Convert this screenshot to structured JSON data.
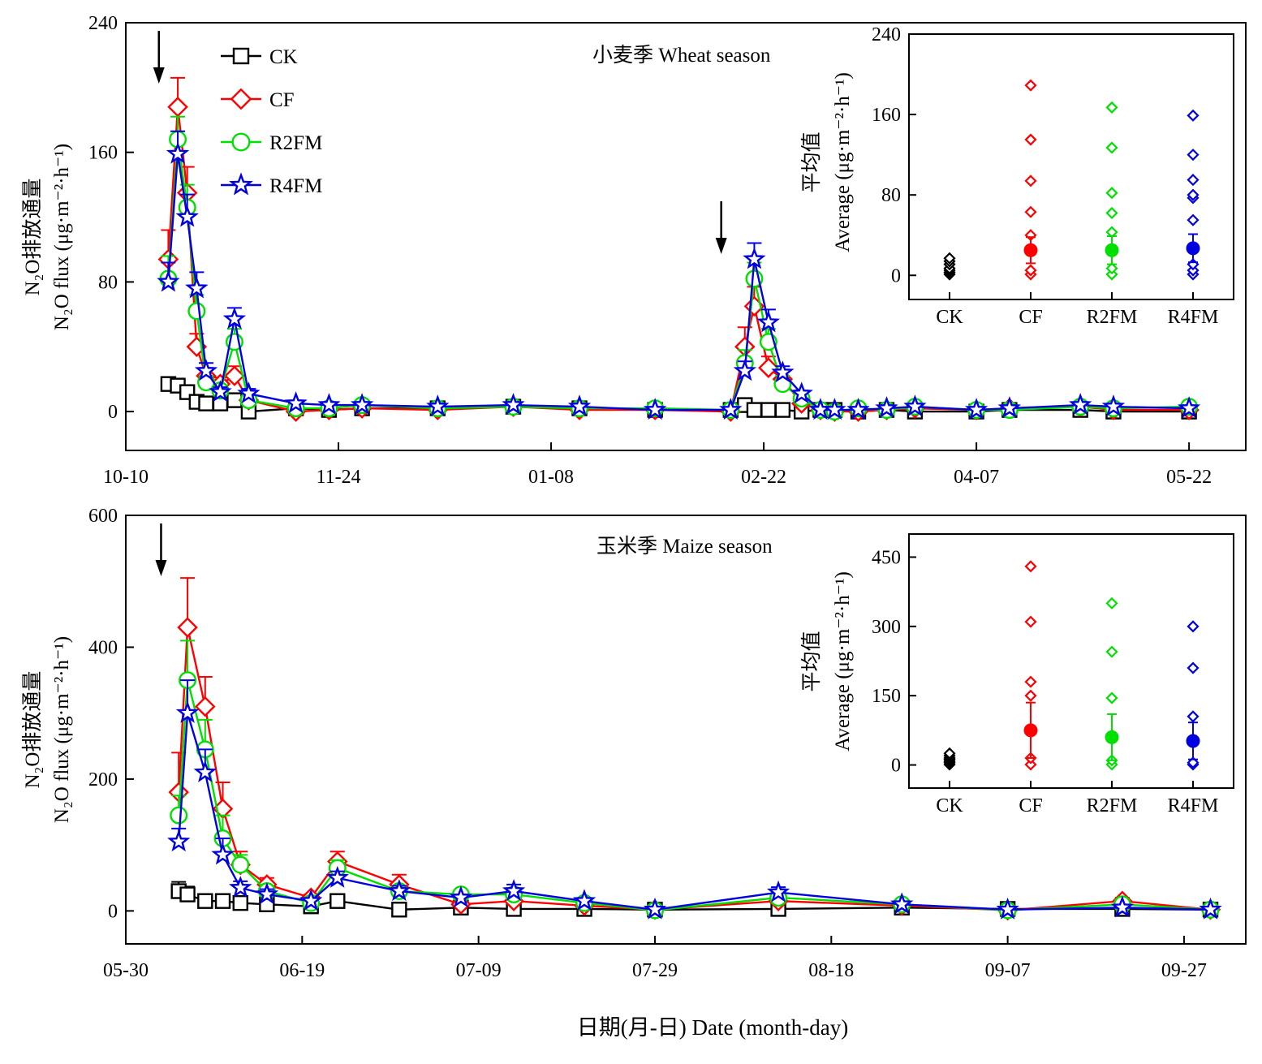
{
  "figure": {
    "xlabel": "日期(月-日)  Date (month-day)",
    "ylabel_line1": "N₂O排放通量",
    "ylabel_line2": "N₂O flux (μg·m⁻²·h⁻¹)",
    "inset_ylabel_line1": "平均值",
    "inset_ylabel_line2": "Average (μg·m⁻²·h⁻¹)"
  },
  "colors": {
    "CK": "#000000",
    "CF": "#ff0000",
    "R2FM": "#00e000",
    "R4FM": "#0000e0"
  },
  "legend": [
    {
      "name": "CK",
      "marker": "square"
    },
    {
      "name": "CF",
      "marker": "diamond"
    },
    {
      "name": "R2FM",
      "marker": "circle"
    },
    {
      "name": "R4FM",
      "marker": "star"
    }
  ],
  "chart_data": [
    {
      "type": "line",
      "panel": "top",
      "title": "小麦季 Wheat season",
      "x_tick_labels": [
        "10-10",
        "11-24",
        "01-08",
        "02-22",
        "04-07",
        "05-22"
      ],
      "x_tick_days": [
        0,
        45,
        90,
        135,
        180,
        225
      ],
      "xlim_days": [
        0,
        237
      ],
      "ylim": [
        -24,
        240
      ],
      "y_ticks": [
        0,
        80,
        160,
        240
      ],
      "fertilization_arrows_days": [
        7,
        126
      ],
      "x_days": [
        9,
        11,
        13,
        15,
        17,
        20,
        23,
        26,
        36,
        43,
        50,
        66,
        82,
        96,
        112,
        128,
        131,
        133,
        136,
        139,
        143,
        147,
        150,
        155,
        161,
        167,
        180,
        187,
        202,
        209,
        225
      ],
      "series": [
        {
          "name": "CK",
          "values": [
            17,
            16,
            12,
            6,
            5,
            5,
            7,
            0,
            2,
            1,
            2,
            2,
            3,
            2,
            1,
            1,
            4,
            1,
            1,
            1,
            0,
            1,
            1,
            0,
            1,
            0,
            0,
            1,
            1,
            0,
            0
          ],
          "errors": [
            4,
            4,
            3,
            2,
            2,
            2,
            2,
            0,
            0,
            0,
            0,
            0,
            0,
            0,
            0,
            0,
            2,
            0,
            0,
            0,
            0,
            0,
            0,
            0,
            0,
            0,
            0,
            0,
            0,
            0,
            0
          ]
        },
        {
          "name": "CF",
          "values": [
            94,
            188,
            135,
            40,
            22,
            17,
            22,
            7,
            0,
            1,
            2,
            1,
            3,
            1,
            1,
            0,
            40,
            65,
            27,
            20,
            5,
            1,
            0,
            0,
            1,
            2,
            1,
            2,
            3,
            1,
            1
          ],
          "errors": [
            18,
            18,
            16,
            8,
            5,
            4,
            6,
            2,
            0,
            0,
            0,
            0,
            0,
            0,
            0,
            0,
            12,
            12,
            7,
            5,
            2,
            0,
            0,
            0,
            0,
            0,
            0,
            0,
            0,
            0,
            0
          ]
        },
        {
          "name": "R2FM",
          "values": [
            82,
            168,
            126,
            62,
            18,
            13,
            43,
            7,
            2,
            2,
            4,
            2,
            3,
            2,
            2,
            1,
            30,
            82,
            43,
            17,
            8,
            1,
            0,
            2,
            1,
            3,
            1,
            1,
            3,
            2,
            3
          ],
          "errors": [
            14,
            14,
            14,
            10,
            4,
            3,
            8,
            2,
            0,
            0,
            0,
            0,
            0,
            0,
            0,
            0,
            8,
            10,
            8,
            5,
            2,
            0,
            0,
            0,
            0,
            0,
            0,
            0,
            0,
            0,
            0
          ]
        },
        {
          "name": "R4FM",
          "values": [
            80,
            159,
            120,
            76,
            25,
            12,
            57,
            11,
            5,
            4,
            4,
            3,
            4,
            3,
            1,
            1,
            25,
            94,
            55,
            24,
            11,
            1,
            1,
            1,
            2,
            3,
            1,
            2,
            4,
            3,
            2
          ],
          "errors": [
            12,
            14,
            14,
            10,
            5,
            3,
            7,
            3,
            0,
            0,
            0,
            0,
            0,
            0,
            0,
            0,
            6,
            10,
            8,
            4,
            2,
            0,
            0,
            0,
            0,
            0,
            0,
            0,
            0,
            0,
            0
          ]
        }
      ],
      "legend_position": "top-left",
      "inset": {
        "type": "scatter",
        "categories": [
          "CK",
          "CF",
          "R2FM",
          "R4FM"
        ],
        "ylim": [
          -24,
          240
        ],
        "y_ticks": [
          0,
          80,
          160,
          240
        ],
        "points": [
          [
            1,
            3,
            5,
            7,
            11,
            14,
            17
          ],
          [
            1,
            5,
            40,
            63,
            94,
            135,
            189
          ],
          [
            1,
            7,
            43,
            62,
            82,
            127,
            167
          ],
          [
            1,
            5,
            11,
            55,
            77,
            80,
            95,
            120,
            159
          ]
        ],
        "means": [
          3,
          25,
          25,
          27
        ],
        "mean_errors": [
          0,
          13,
          14,
          14
        ]
      }
    },
    {
      "type": "line",
      "panel": "bottom",
      "title": "玉米季 Maize season",
      "x_tick_labels": [
        "05-30",
        "06-19",
        "07-09",
        "07-29",
        "08-18",
        "09-07",
        "09-27"
      ],
      "x_tick_days": [
        0,
        20,
        40,
        60,
        80,
        100,
        120
      ],
      "xlim_days": [
        0,
        127
      ],
      "ylim": [
        -50,
        600
      ],
      "y_ticks": [
        0,
        200,
        400,
        600
      ],
      "fertilization_arrows_days": [
        4
      ],
      "x_days": [
        6,
        7,
        9,
        11,
        13,
        16,
        21,
        24,
        31,
        38,
        44,
        52,
        60,
        74,
        88,
        100,
        113,
        123
      ],
      "series": [
        {
          "name": "CK",
          "values": [
            30,
            25,
            15,
            15,
            12,
            10,
            7,
            15,
            2,
            5,
            3,
            3,
            2,
            3,
            5,
            3,
            3,
            2
          ],
          "errors": [
            14,
            12,
            5,
            4,
            4,
            4,
            2,
            5,
            0,
            0,
            0,
            0,
            0,
            0,
            0,
            0,
            0,
            0
          ]
        },
        {
          "name": "CF",
          "values": [
            180,
            430,
            310,
            155,
            70,
            40,
            20,
            75,
            40,
            10,
            15,
            8,
            2,
            15,
            8,
            1,
            15,
            2
          ],
          "errors": [
            60,
            75,
            45,
            40,
            20,
            10,
            5,
            15,
            15,
            3,
            5,
            3,
            0,
            5,
            3,
            0,
            5,
            0
          ]
        },
        {
          "name": "R2FM",
          "values": [
            145,
            350,
            245,
            110,
            70,
            30,
            12,
            65,
            30,
            25,
            25,
            12,
            1,
            20,
            10,
            1,
            10,
            2
          ],
          "errors": [
            30,
            60,
            45,
            35,
            15,
            8,
            4,
            12,
            8,
            5,
            8,
            4,
            0,
            5,
            3,
            0,
            4,
            0
          ]
        },
        {
          "name": "R4FM",
          "values": [
            105,
            300,
            210,
            85,
            35,
            25,
            15,
            50,
            30,
            20,
            30,
            15,
            2,
            28,
            10,
            2,
            5,
            2
          ],
          "errors": [
            20,
            50,
            35,
            25,
            10,
            8,
            4,
            10,
            8,
            5,
            10,
            4,
            0,
            8,
            3,
            0,
            3,
            0
          ]
        }
      ],
      "inset": {
        "type": "scatter",
        "categories": [
          "CK",
          "CF",
          "R2FM",
          "R4FM"
        ],
        "ylim": [
          -50,
          500
        ],
        "y_ticks": [
          0,
          150,
          300,
          450
        ],
        "points": [
          [
            1,
            5,
            8,
            12,
            15,
            20,
            25
          ],
          [
            1,
            15,
            150,
            180,
            310,
            430
          ],
          [
            1,
            10,
            145,
            245,
            350
          ],
          [
            1,
            5,
            105,
            210,
            300
          ]
        ],
        "means": [
          5,
          75,
          60,
          52
        ],
        "mean_errors": [
          0,
          60,
          50,
          40
        ]
      }
    }
  ]
}
